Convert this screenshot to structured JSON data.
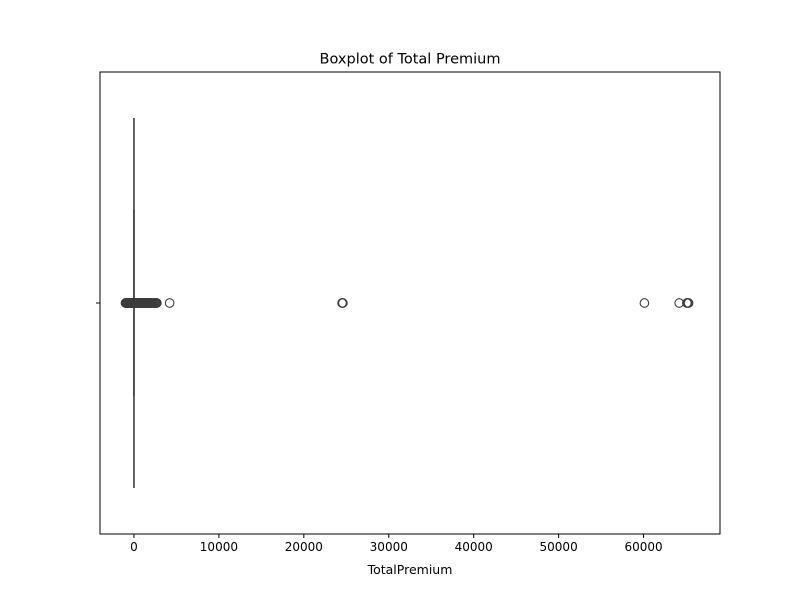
{
  "chart_data": {
    "type": "boxplot",
    "title": "Boxplot of Total Premium",
    "xlabel": "TotalPremium",
    "ylabel": "",
    "xlim": [
      -4000,
      69000
    ],
    "xticks": [
      0,
      10000,
      20000,
      30000,
      40000,
      50000,
      60000
    ],
    "xtick_labels": [
      "0",
      "10000",
      "20000",
      "30000",
      "40000",
      "50000",
      "60000"
    ],
    "orientation": "horizontal",
    "grid": false,
    "box": {
      "q1": 0,
      "median": 0,
      "q3": 0,
      "whisker_low": 0,
      "whisker_high": 0
    },
    "outliers": [
      -1000,
      -950,
      -900,
      -850,
      -800,
      -750,
      -700,
      -650,
      -600,
      -550,
      -500,
      -450,
      -400,
      -350,
      -300,
      -250,
      -200,
      -150,
      -100,
      -50,
      50,
      100,
      150,
      200,
      250,
      300,
      350,
      400,
      450,
      500,
      550,
      600,
      650,
      700,
      750,
      800,
      850,
      900,
      950,
      1000,
      1050,
      1100,
      1150,
      1200,
      1250,
      1300,
      1350,
      1400,
      1450,
      1500,
      1550,
      1600,
      1650,
      1700,
      1750,
      1800,
      1850,
      1900,
      1950,
      2000,
      2100,
      2200,
      2300,
      2400,
      2500,
      2600,
      2700,
      4200,
      24500,
      24550,
      24600,
      60100,
      64200,
      65100,
      65200,
      65300
    ],
    "colors": {
      "box_line": "#3d3d3d",
      "marker_edge": "#3d3d3d",
      "axes": "#000000"
    }
  }
}
